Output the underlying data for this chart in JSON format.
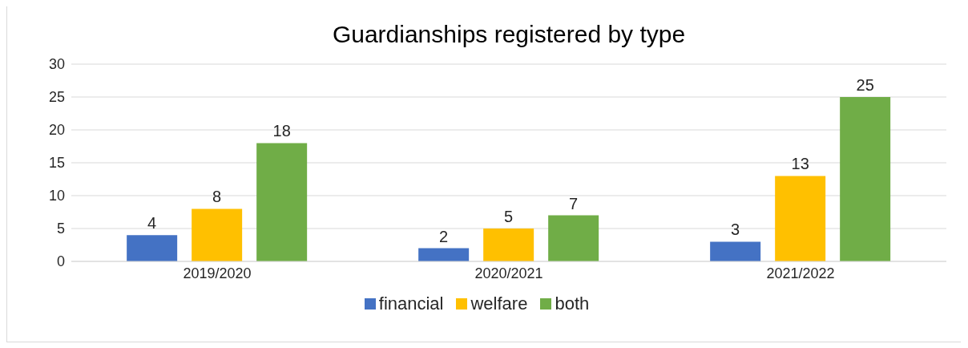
{
  "chart_data": {
    "type": "bar",
    "title": "Guardianships registered by type",
    "categories": [
      "2019/2020",
      "2020/2021",
      "2021/2022"
    ],
    "series": [
      {
        "name": "financial",
        "color": "#4472c4",
        "values": [
          4,
          2,
          3
        ]
      },
      {
        "name": "welfare",
        "color": "#ffc000",
        "values": [
          8,
          5,
          13
        ]
      },
      {
        "name": "both",
        "color": "#70ad47",
        "values": [
          18,
          7,
          25
        ]
      }
    ],
    "ylim": [
      0,
      30
    ],
    "yticks": [
      0,
      5,
      10,
      15,
      20,
      25,
      30
    ],
    "grid": "y",
    "legend": "bottom",
    "data_labels": true
  }
}
